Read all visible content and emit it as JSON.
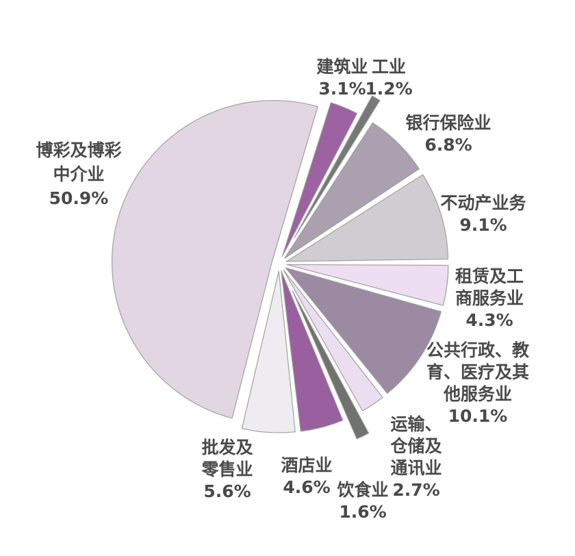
{
  "chart_data": {
    "type": "pie",
    "unit": "%",
    "total": 100,
    "start_angle_deg": 17,
    "legend_position": "none",
    "labels_style": "exterior-callouts",
    "slices": [
      {
        "key": "construction",
        "label": "建筑业",
        "display_name": "建筑业",
        "value": 3.1,
        "value_label": "3.1%",
        "color": "#9d62a1",
        "exploded": false
      },
      {
        "key": "industry",
        "label": "工业",
        "display_name": "工业",
        "value": 1.2,
        "value_label": "1.2%",
        "color": "#757a75",
        "exploded": true
      },
      {
        "key": "banking-insurance",
        "label": "银行保险业",
        "display_name": "银行保险业",
        "value": 6.8,
        "value_label": "6.8%",
        "color": "#aaa0af",
        "exploded": false
      },
      {
        "key": "real-estate",
        "label": "不动产业务",
        "display_name": "不动产业务",
        "value": 9.1,
        "value_label": "9.1%",
        "color": "#d0cdd2",
        "exploded": false
      },
      {
        "key": "leasing-business",
        "label": "租赁及工商服务业",
        "display_name": "租赁及工\n商服务业",
        "value": 4.3,
        "value_label": "4.3%",
        "color": "#eedef2",
        "exploded": false
      },
      {
        "key": "public-admin-services",
        "label": "公共行政、教育、医疗及其他服务业",
        "display_name": "公共行政、教\n育、医疗及其\n他服务业",
        "value": 10.1,
        "value_label": "10.1%",
        "color": "#9c8aa2",
        "exploded": false
      },
      {
        "key": "transport-storage-comms",
        "label": "运输、仓储及通讯业",
        "display_name": "运输、\n仓储及\n通讯业",
        "value": 2.7,
        "value_label": "2.7%",
        "color": "#ecdef1",
        "exploded": false
      },
      {
        "key": "catering",
        "label": "饮食业",
        "display_name": "饮食业",
        "value": 1.6,
        "value_label": "1.6%",
        "color": "#6e736e",
        "exploded": true
      },
      {
        "key": "hotels",
        "label": "酒店业",
        "display_name": "酒店业",
        "value": 4.6,
        "value_label": "4.6%",
        "color": "#9a5f9f",
        "exploded": false
      },
      {
        "key": "wholesale-retail",
        "label": "批发及零售业",
        "display_name": "批发及\n零售业",
        "value": 5.6,
        "value_label": "5.6%",
        "color": "#eeecf1",
        "exploded": false
      },
      {
        "key": "gaming-intermediary",
        "label": "博彩及博彩中介业",
        "display_name": "博彩及博彩\n中介业",
        "value": 50.9,
        "value_label": "50.9%",
        "color": "#e2d6e3",
        "exploded": false
      }
    ]
  }
}
